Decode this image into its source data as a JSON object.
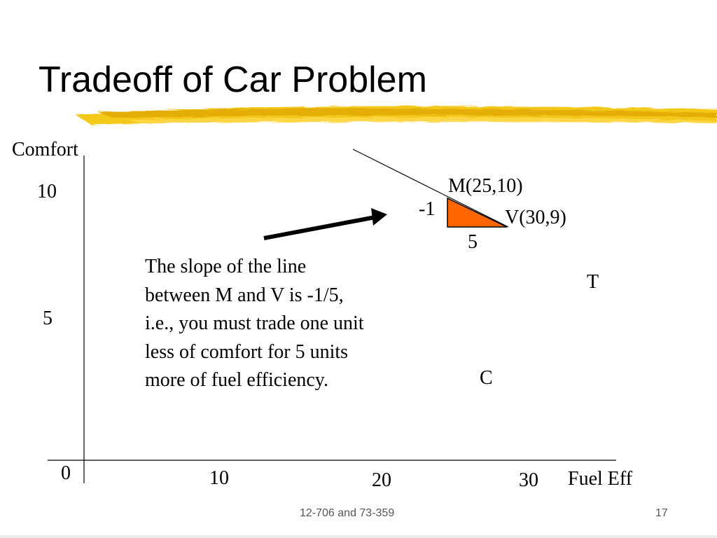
{
  "slide": {
    "title": "Tradeoff of Car Problem",
    "footer_center": "12-706 and 73-359",
    "page_number": "17"
  },
  "chart_data": {
    "type": "scatter",
    "xlabel": "Fuel Eff",
    "ylabel": "Comfort",
    "x_ticks": [
      "0",
      "10",
      "20",
      "30"
    ],
    "y_ticks": [
      "10",
      "5"
    ],
    "points": [
      {
        "label": "M(25,10)",
        "x": 25,
        "y": 10
      },
      {
        "label": "V(30,9)",
        "x": 30,
        "y": 9
      },
      {
        "label": "T"
      },
      {
        "label": "C"
      }
    ],
    "slope_triangle": {
      "rise_label": "-1",
      "run_label": "5",
      "color": "#ff6600"
    }
  },
  "note": {
    "lines": [
      "The slope of the line",
      "between M and V is -1/5,",
      "i.e., you must trade one unit",
      "less of comfort for 5 units",
      "more of fuel efficiency."
    ]
  },
  "colors": {
    "highlight": "#f2c200",
    "triangle_fill": "#ff6600",
    "axis": "#000000"
  }
}
